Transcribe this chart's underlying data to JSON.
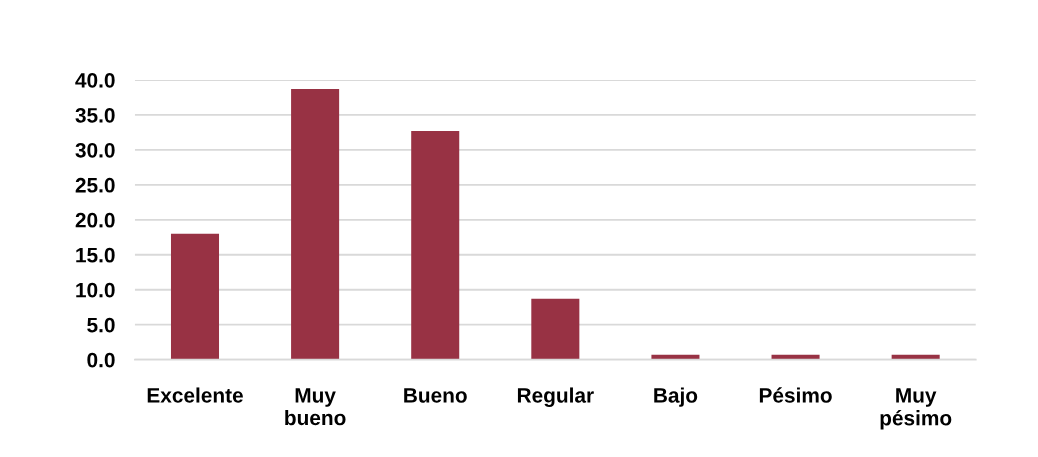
{
  "chart_data": {
    "type": "bar",
    "categories": [
      "Excelente",
      "Muy bueno",
      "Bueno",
      "Regular",
      "Bajo",
      "Pésimo",
      "Muy pésimo"
    ],
    "values": [
      18.0,
      38.7,
      32.7,
      8.7,
      0.7,
      0.7,
      0.7
    ],
    "color": "#983244",
    "ylim": [
      0,
      40
    ],
    "yticks": [
      {
        "value": 0,
        "label": "0.0"
      },
      {
        "value": 5,
        "label": "5.0"
      },
      {
        "value": 10,
        "label": "10.0"
      },
      {
        "value": 15,
        "label": "15.0"
      },
      {
        "value": 20,
        "label": "20.0"
      },
      {
        "value": 25,
        "label": "25.0"
      },
      {
        "value": 30,
        "label": "30.0"
      },
      {
        "value": 35,
        "label": "35.0"
      },
      {
        "value": 40,
        "label": "40.0"
      }
    ],
    "grid": "y"
  }
}
